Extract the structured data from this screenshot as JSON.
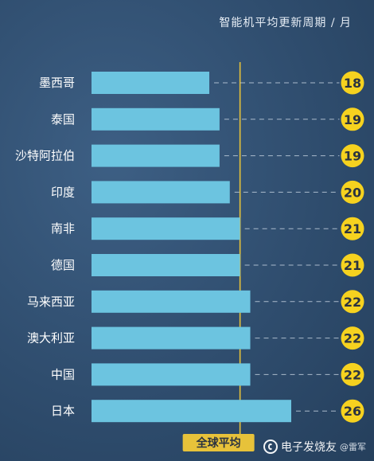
{
  "chart_data": {
    "type": "bar",
    "orientation": "horizontal",
    "title": "智能机平均更新周期 / 月",
    "categories": [
      "墨西哥",
      "泰国",
      "沙特阿拉伯",
      "印度",
      "南非",
      "德国",
      "马来西亚",
      "澳大利亚",
      "中国",
      "日本"
    ],
    "values": [
      18,
      19,
      19,
      20,
      21,
      21,
      22,
      22,
      22,
      26
    ],
    "reference_line": {
      "label": "全球平均",
      "value": 21
    },
    "xlim": [
      6.5,
      26
    ],
    "grid": false,
    "colors": {
      "bar": "#6cc4e0",
      "badge": "#f6d21f",
      "badge_text": "#2b3340",
      "reference": "#e7c23a",
      "label_text": "#ffffff",
      "dashes": "#c9d6e3"
    }
  },
  "watermark": {
    "name": "电子发烧友",
    "sub": "@雷军"
  }
}
